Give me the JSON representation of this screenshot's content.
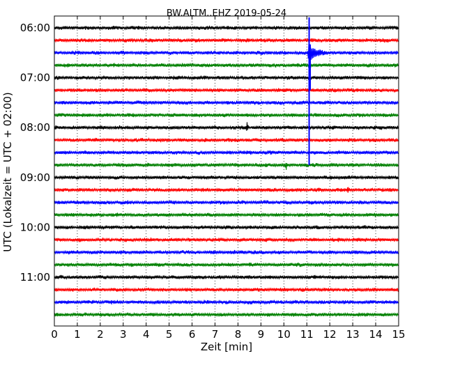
{
  "chart_data": {
    "type": "line",
    "title": "BW.ALTM..EHZ 2019-05-24",
    "xlabel": "Zeit  [min]",
    "ylabel": "UTC (Lokalzeit = UTC + 02:00)",
    "xlim": [
      0,
      15
    ],
    "x_ticks": [
      0,
      1,
      2,
      3,
      4,
      5,
      6,
      7,
      8,
      9,
      10,
      11,
      12,
      13,
      14,
      15
    ],
    "x_tick_labels": [
      "0",
      "1",
      "2",
      "3",
      "4",
      "5",
      "6",
      "7",
      "8",
      "9",
      "10",
      "11",
      "12",
      "13",
      "14",
      "15"
    ],
    "grid": "vertical dotted",
    "trace_start_minutes": 0,
    "trace_end_minutes": 15,
    "trace_interval_minutes": 15,
    "trace_colors": [
      "#000000",
      "#ff0000",
      "#0000ff",
      "#008000"
    ],
    "time_labels": [
      {
        "label": "06:00",
        "trace_index": 0
      },
      {
        "label": "07:00",
        "trace_index": 4
      },
      {
        "label": "08:00",
        "trace_index": 8
      },
      {
        "label": "09:00",
        "trace_index": 12
      },
      {
        "label": "10:00",
        "trace_index": 16
      },
      {
        "label": "11:00",
        "trace_index": 20
      }
    ],
    "traces": [
      {
        "start": "06:00",
        "color": "#000000"
      },
      {
        "start": "06:15",
        "color": "#ff0000"
      },
      {
        "start": "06:30",
        "color": "#0000ff"
      },
      {
        "start": "06:45",
        "color": "#008000"
      },
      {
        "start": "07:00",
        "color": "#000000"
      },
      {
        "start": "07:15",
        "color": "#ff0000"
      },
      {
        "start": "07:30",
        "color": "#0000ff"
      },
      {
        "start": "07:45",
        "color": "#008000"
      },
      {
        "start": "08:00",
        "color": "#000000"
      },
      {
        "start": "08:15",
        "color": "#ff0000"
      },
      {
        "start": "08:30",
        "color": "#0000ff"
      },
      {
        "start": "08:45",
        "color": "#008000"
      },
      {
        "start": "09:00",
        "color": "#000000"
      },
      {
        "start": "09:15",
        "color": "#ff0000"
      },
      {
        "start": "09:30",
        "color": "#0000ff"
      },
      {
        "start": "09:45",
        "color": "#008000"
      },
      {
        "start": "10:00",
        "color": "#000000"
      },
      {
        "start": "10:15",
        "color": "#ff0000"
      },
      {
        "start": "10:30",
        "color": "#0000ff"
      },
      {
        "start": "10:45",
        "color": "#008000"
      },
      {
        "start": "11:00",
        "color": "#000000"
      },
      {
        "start": "11:15",
        "color": "#ff0000"
      },
      {
        "start": "11:30",
        "color": "#0000ff"
      },
      {
        "start": "11:45",
        "color": "#008000"
      }
    ],
    "events": [
      {
        "trace_index": 2,
        "minute": 11.1,
        "description": "large earthquake signal, main arrival"
      },
      {
        "trace_index": 8,
        "minute": 8.4,
        "description": "small spike"
      },
      {
        "trace_index": 11,
        "minute": 10.1,
        "description": "small spike"
      },
      {
        "trace_index": 13,
        "minute": 12.8,
        "description": "small burst"
      }
    ]
  }
}
